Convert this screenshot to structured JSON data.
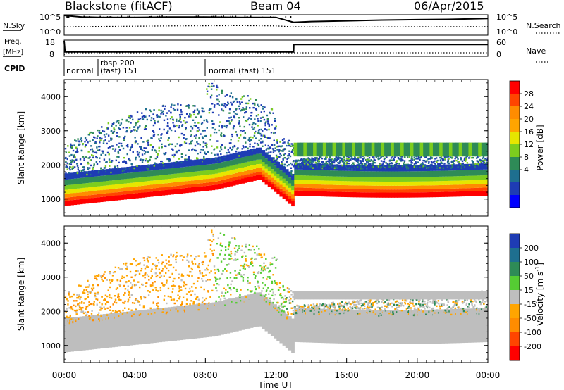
{
  "header": {
    "station": "Blackstone (fitACF)",
    "beam": "Beam 04",
    "date": "06/Apr/2015"
  },
  "chart_data": [
    {
      "type": "line",
      "panel": "noise",
      "left_label": "N.Sky",
      "right_label": "N.Search",
      "left_ticks": [
        "10^5",
        "10^0"
      ],
      "right_ticks": [
        "10^5",
        "10^0"
      ],
      "x": [
        0,
        1,
        2,
        4,
        6,
        8,
        10,
        12,
        13,
        14,
        16,
        18,
        20,
        22,
        24
      ],
      "series": [
        {
          "name": "N.Sky",
          "values": [
            5,
            4.6,
            4.5,
            4.5,
            4.6,
            4.6,
            4.5,
            4.5,
            3.2,
            3.4,
            3.6,
            3.8,
            3.9,
            4.0,
            4.2
          ]
        },
        {
          "name": "N.Search",
          "values": [
            0.5,
            0.55,
            0.6,
            0.7,
            0.8,
            0.85,
            0.9,
            0.8,
            0.5,
            0.45,
            0.4,
            0.45,
            0.5,
            0.5,
            0.55
          ]
        }
      ]
    },
    {
      "type": "line",
      "panel": "frequency",
      "left_label": "Freq. [MHz]",
      "right_label": "Nave",
      "left_ticks": [
        "18",
        "8"
      ],
      "right_ticks": [
        "60",
        "0"
      ],
      "ylim": [
        8,
        18
      ],
      "x": [
        0,
        0.05,
        13.0,
        13.01,
        24
      ],
      "series": [
        {
          "name": "Freq.",
          "values": [
            18,
            10.5,
            10.5,
            15.5,
            15.5
          ]
        },
        {
          "name": "Nave",
          "values": [
            0,
            30,
            30,
            30,
            30
          ]
        }
      ]
    },
    {
      "type": "table",
      "panel": "cpid",
      "label": "CPID",
      "entries": [
        {
          "start": 0.0,
          "text": "normal"
        },
        {
          "start": 2.3,
          "text": "rbsp 200"
        },
        {
          "start": 2.3,
          "text": "(fast) 151"
        },
        {
          "start": 8.0,
          "text": "normal (fast) 151"
        }
      ]
    },
    {
      "type": "heatmap",
      "panel": "power",
      "ylabel": "Slant Range [km]",
      "yticks": [
        1000,
        2000,
        3000,
        4000
      ],
      "ylim": [
        500,
        4500
      ],
      "xlim": [
        0,
        24
      ],
      "colorbar": {
        "label": "Power [dB]",
        "ticks": [
          "28",
          "24",
          "20",
          "16",
          "12",
          "8",
          "4"
        ],
        "colors": [
          "#ff0000",
          "#ff4500",
          "#ff8c00",
          "#ffa500",
          "#e6e600",
          "#7ccd1e",
          "#2e8b57",
          "#1e6f8f",
          "#1e3cb4",
          "#0000ff"
        ]
      },
      "bands": [
        {
          "from": 0,
          "to": 13,
          "top_km": [
            1200,
            1250,
            1300,
            1400,
            1500,
            1600,
            1700,
            1650,
            900
          ],
          "level": "high"
        },
        {
          "from": 13,
          "to": 24,
          "top_km": [
            1600,
            1550,
            1500,
            1500,
            1500,
            1500
          ],
          "level": "high"
        }
      ]
    },
    {
      "type": "heatmap",
      "panel": "velocity",
      "ylabel": "Slant Range [km]",
      "xlabel": "Time UT",
      "yticks": [
        1000,
        2000,
        3000,
        4000
      ],
      "xticks": [
        "00:00",
        "04:00",
        "08:00",
        "12:00",
        "16:00",
        "20:00",
        "00:00"
      ],
      "ylim": [
        500,
        4500
      ],
      "xlim": [
        0,
        24
      ],
      "colorbar": {
        "label": "Velocity [m s-1]",
        "ticks": [
          "200",
          "100",
          "50",
          "15",
          "-15",
          "-50",
          "-100",
          "-200"
        ],
        "colors": [
          "#1e3cb4",
          "#1e6f8f",
          "#2e8b57",
          "#55cc33",
          "#bebebe",
          "#ffa500",
          "#ff8c00",
          "#ff4500",
          "#ff0000"
        ]
      }
    }
  ]
}
